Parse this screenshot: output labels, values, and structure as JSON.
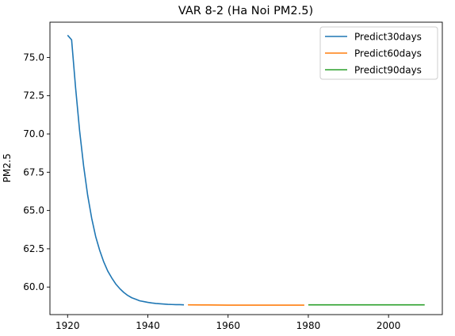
{
  "chart_data": {
    "type": "line",
    "title": "VAR 8-2 (Ha Noi PM2.5)",
    "xlabel": "",
    "ylabel": "PM2.5",
    "xlim": [
      1915.6,
      2013.4
    ],
    "ylim": [
      58.2,
      77.3
    ],
    "xticks": [
      1920,
      1940,
      1960,
      1980,
      2000
    ],
    "yticks": [
      60.0,
      62.5,
      65.0,
      67.5,
      70.0,
      72.5,
      75.0
    ],
    "ytick_labels": [
      "60.0",
      "62.5",
      "65.0",
      "67.5",
      "70.0",
      "72.5",
      "75.0"
    ],
    "grid": false,
    "legend_position": "top-right",
    "series": [
      {
        "name": "Predict30days",
        "color": "#1f77b4",
        "x": [
          1920,
          1921,
          1922,
          1923,
          1924,
          1925,
          1926,
          1927,
          1928,
          1929,
          1930,
          1931,
          1932,
          1933,
          1934,
          1935,
          1936,
          1937,
          1938,
          1939,
          1940,
          1941,
          1942,
          1943,
          1944,
          1945,
          1946,
          1947,
          1948,
          1949
        ],
        "y": [
          76.45,
          76.15,
          73.0,
          70.2,
          67.9,
          66.0,
          64.5,
          63.3,
          62.4,
          61.65,
          61.05,
          60.6,
          60.2,
          59.9,
          59.65,
          59.45,
          59.3,
          59.2,
          59.1,
          59.05,
          59.0,
          58.96,
          58.93,
          58.91,
          58.89,
          58.87,
          58.86,
          58.85,
          58.85,
          58.84
        ]
      },
      {
        "name": "Predict60days",
        "color": "#ff7f0e",
        "x": [
          1950,
          1955,
          1960,
          1965,
          1970,
          1975,
          1979
        ],
        "y": [
          58.84,
          58.83,
          58.82,
          58.82,
          58.82,
          58.82,
          58.82
        ]
      },
      {
        "name": "Predict90days",
        "color": "#2ca02c",
        "x": [
          1980,
          1990,
          2000,
          2009
        ],
        "y": [
          58.84,
          58.84,
          58.84,
          58.84
        ]
      }
    ]
  }
}
